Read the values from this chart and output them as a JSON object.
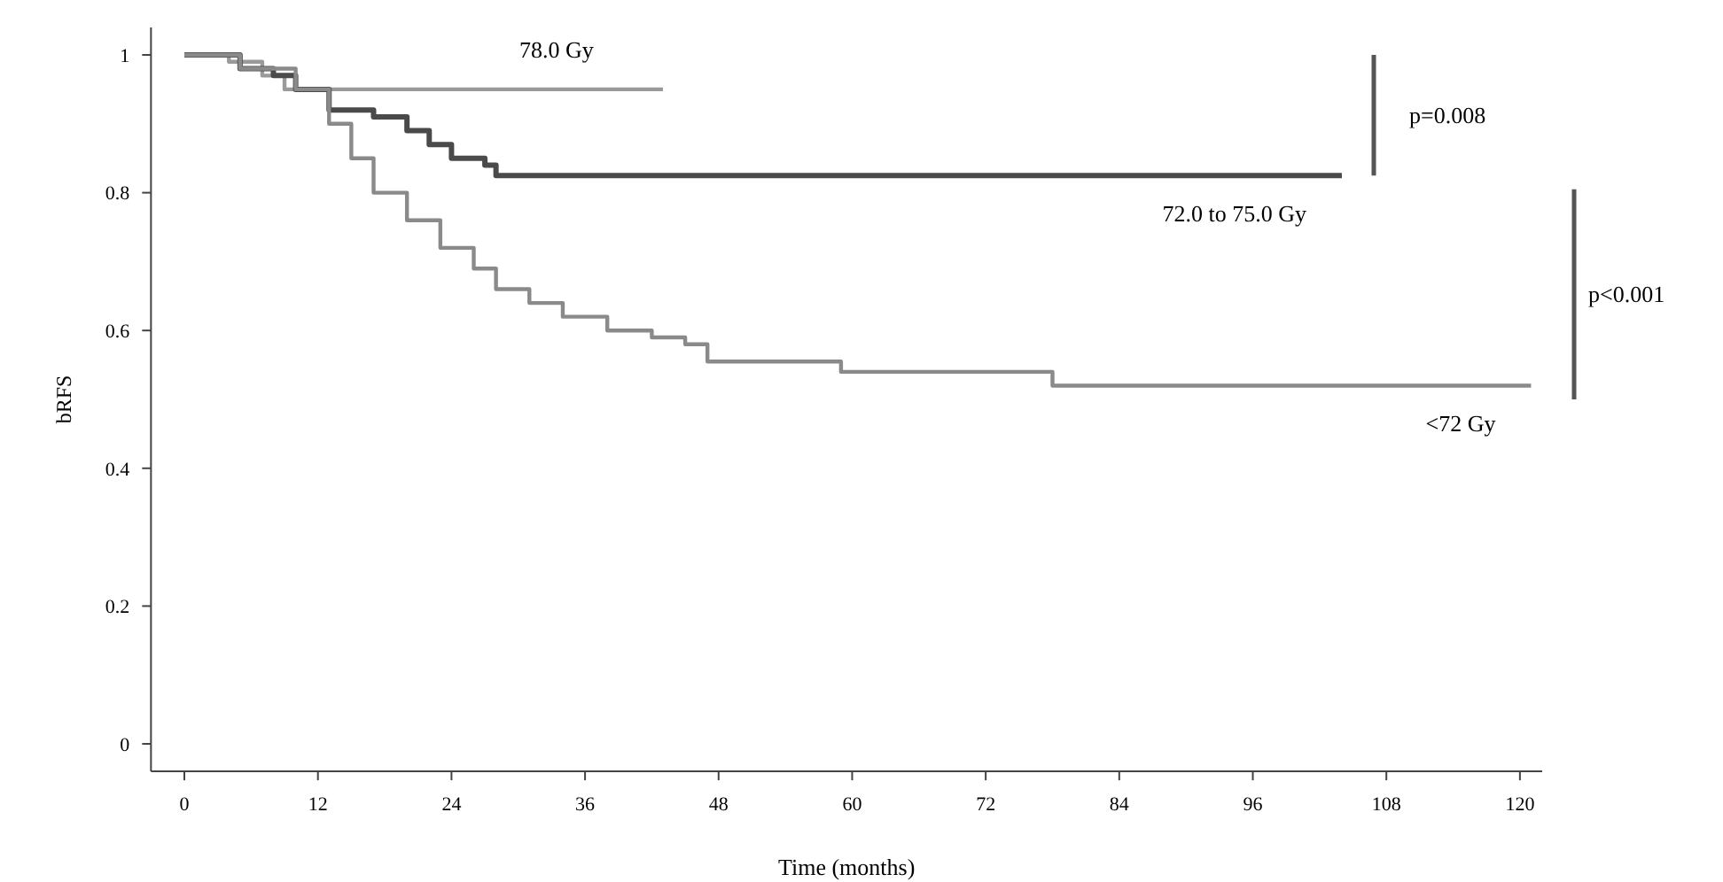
{
  "chart_data": {
    "type": "step",
    "xlabel": "Time (months)",
    "ylabel": "bRFS",
    "xlim": [
      -3,
      122
    ],
    "ylim": [
      -0.04,
      1.04
    ],
    "xticks": [
      0,
      12,
      24,
      36,
      48,
      60,
      72,
      84,
      96,
      108,
      120
    ],
    "yticks": [
      0,
      0.2,
      0.4,
      0.6,
      0.8,
      1
    ],
    "grid": false,
    "marker": "none",
    "line_style": "solid",
    "series": [
      {
        "name": "78.0 Gy",
        "color": "#9a9a9a",
        "x": [
          0,
          4,
          7,
          9,
          43
        ],
        "values": [
          1,
          0.99,
          0.97,
          0.95,
          0.95
        ]
      },
      {
        "name": "72.0 to 75.0 Gy",
        "color": "#4a4a4a",
        "x": [
          0,
          5,
          8,
          10,
          13,
          17,
          20,
          22,
          24,
          27,
          28,
          104
        ],
        "values": [
          1,
          0.98,
          0.97,
          0.95,
          0.92,
          0.91,
          0.89,
          0.87,
          0.85,
          0.84,
          0.825,
          0.825
        ]
      },
      {
        "name": "<72 Gy",
        "color": "#8a8a8a",
        "x": [
          0,
          5,
          10,
          13,
          15,
          17,
          20,
          23,
          26,
          28,
          31,
          34,
          38,
          42,
          45,
          47,
          59,
          78,
          121
        ],
        "values": [
          1,
          0.98,
          0.95,
          0.9,
          0.85,
          0.8,
          0.76,
          0.72,
          0.69,
          0.66,
          0.64,
          0.62,
          0.6,
          0.59,
          0.58,
          0.555,
          0.54,
          0.52,
          0.52
        ]
      }
    ],
    "annotations": [
      "p=0.008",
      "p<0.001"
    ]
  }
}
